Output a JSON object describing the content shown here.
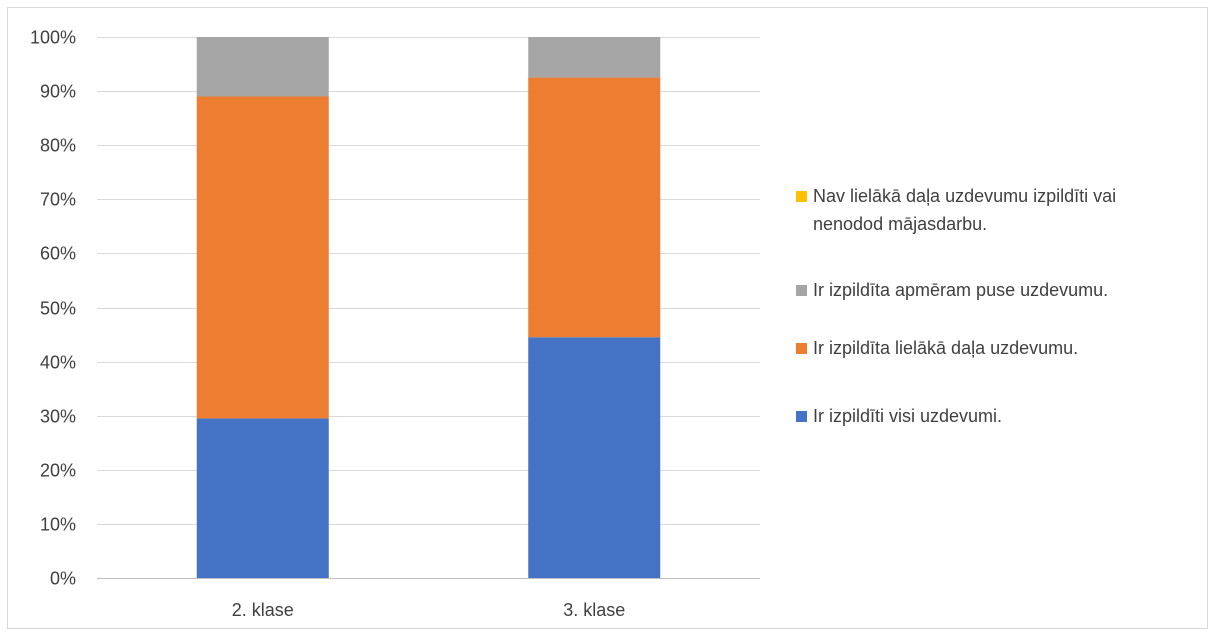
{
  "chart_data": {
    "type": "bar",
    "stacked": true,
    "percent": true,
    "categories": [
      "2. klase",
      "3. klase"
    ],
    "series": [
      {
        "name": "Ir izpildīti visi uzdevumi.",
        "values": [
          29.5,
          44.5
        ],
        "color": "#4472c4"
      },
      {
        "name": "Ir izpildīta lielākā daļa uzdevumu.",
        "values": [
          59.5,
          48.0
        ],
        "color": "#ed7d31"
      },
      {
        "name": "Ir izpildīta apmēram puse uzdevumu.",
        "values": [
          11.0,
          7.5
        ],
        "color": "#a5a5a5"
      },
      {
        "name": "Nav lielākā daļa uzdevumu izpildīti vai nenodod mājasdarbu.",
        "values": [
          0,
          0
        ],
        "color": "#ffc000"
      }
    ],
    "ylim": [
      0,
      100
    ],
    "yticks": [
      "0%",
      "10%",
      "20%",
      "30%",
      "40%",
      "50%",
      "60%",
      "70%",
      "80%",
      "90%",
      "100%"
    ],
    "grid": true,
    "legend_position": "right",
    "legend_order": [
      3,
      2,
      1,
      0
    ]
  }
}
